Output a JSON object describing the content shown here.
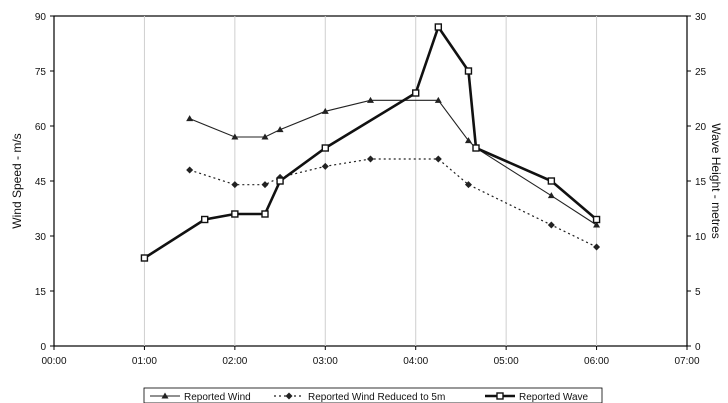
{
  "chart_data": {
    "type": "line",
    "x_ticks": [
      "00:00",
      "01:00",
      "02:00",
      "03:00",
      "04:00",
      "05:00",
      "06:00",
      "07:00"
    ],
    "y_left": {
      "label": "Wind Speed - m/s",
      "ticks": [
        "0",
        "15",
        "30",
        "45",
        "60",
        "75",
        "90"
      ],
      "range": [
        0,
        90
      ]
    },
    "y_right": {
      "label": "Wave Height - metres",
      "ticks": [
        "0",
        "5",
        "10",
        "15",
        "20",
        "25",
        "30"
      ],
      "range": [
        0,
        30
      ]
    },
    "x_range": [
      "00:00",
      "07:00"
    ],
    "grid": "vertical",
    "legend_position": "bottom",
    "series": [
      {
        "name": "Reported Wind",
        "axis": "left",
        "marker": "triangle",
        "style": "solid",
        "points": [
          {
            "x": "01:30",
            "y": 62
          },
          {
            "x": "02:00",
            "y": 57
          },
          {
            "x": "02:20",
            "y": 57
          },
          {
            "x": "02:30",
            "y": 59
          },
          {
            "x": "03:00",
            "y": 64
          },
          {
            "x": "03:30",
            "y": 67
          },
          {
            "x": "04:15",
            "y": 67
          },
          {
            "x": "04:35",
            "y": 56
          },
          {
            "x": "04:40",
            "y": 54
          },
          {
            "x": "05:30",
            "y": 41
          },
          {
            "x": "06:00",
            "y": 33
          }
        ]
      },
      {
        "name": "Reported Wind Reduced to 5m",
        "axis": "left",
        "marker": "diamond",
        "style": "dotted",
        "points": [
          {
            "x": "01:30",
            "y": 48
          },
          {
            "x": "02:00",
            "y": 44
          },
          {
            "x": "02:20",
            "y": 44
          },
          {
            "x": "02:30",
            "y": 46
          },
          {
            "x": "03:00",
            "y": 49
          },
          {
            "x": "03:30",
            "y": 51
          },
          {
            "x": "04:15",
            "y": 51
          },
          {
            "x": "04:35",
            "y": 44
          },
          {
            "x": "05:30",
            "y": 33
          },
          {
            "x": "06:00",
            "y": 27
          }
        ]
      },
      {
        "name": "Reported Wave",
        "axis": "right",
        "marker": "square",
        "style": "thick",
        "points": [
          {
            "x": "01:00",
            "y": 8
          },
          {
            "x": "01:40",
            "y": 11.5
          },
          {
            "x": "02:00",
            "y": 12
          },
          {
            "x": "02:20",
            "y": 12
          },
          {
            "x": "02:30",
            "y": 15
          },
          {
            "x": "03:00",
            "y": 18
          },
          {
            "x": "04:00",
            "y": 23
          },
          {
            "x": "04:15",
            "y": 29
          },
          {
            "x": "04:35",
            "y": 25
          },
          {
            "x": "04:40",
            "y": 18
          },
          {
            "x": "05:30",
            "y": 15
          },
          {
            "x": "06:00",
            "y": 11.5
          }
        ]
      }
    ]
  }
}
